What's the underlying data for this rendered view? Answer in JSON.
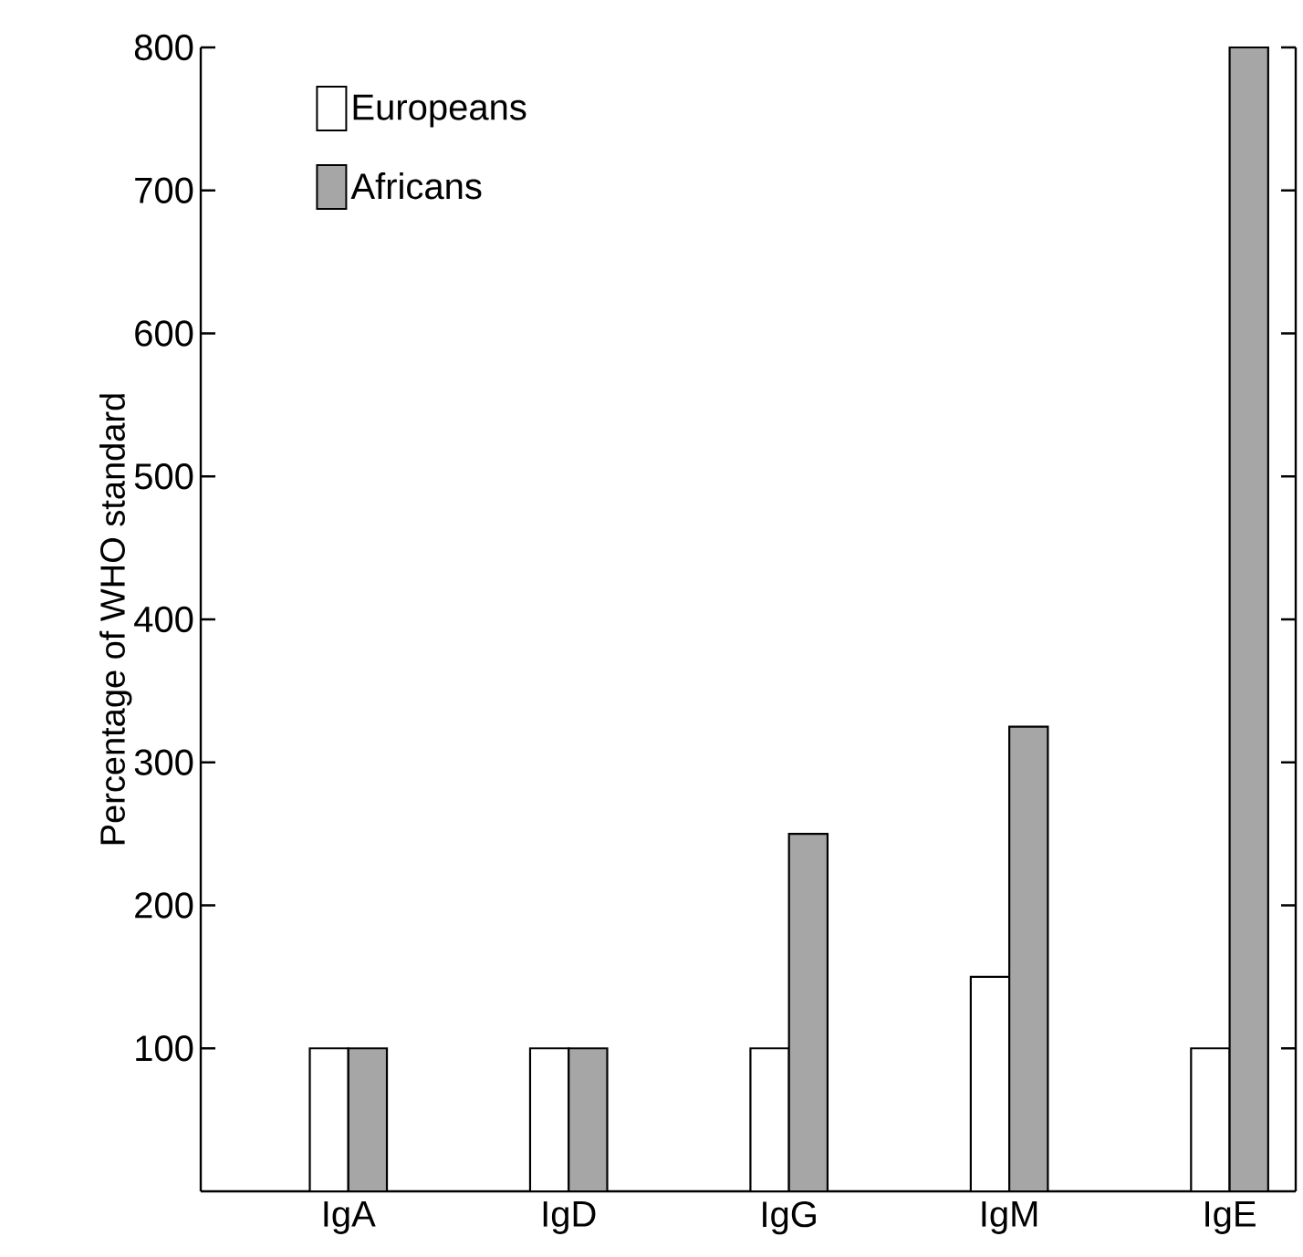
{
  "chart_data": {
    "type": "bar",
    "ylabel": "Percentage of WHO standard",
    "categories": [
      "IgA",
      "IgD",
      "IgG",
      "IgM",
      "IgE"
    ],
    "series": [
      {
        "name": "Europeans",
        "color": "#ffffff",
        "values": [
          100,
          100,
          100,
          150,
          100
        ]
      },
      {
        "name": "Africans",
        "color": "#a6a6a6",
        "values": [
          100,
          100,
          250,
          325,
          800
        ]
      }
    ],
    "ylim": [
      0,
      800
    ],
    "yticks": [
      100,
      200,
      300,
      400,
      500,
      600,
      700,
      800
    ],
    "legend": "top left",
    "grid": false
  }
}
